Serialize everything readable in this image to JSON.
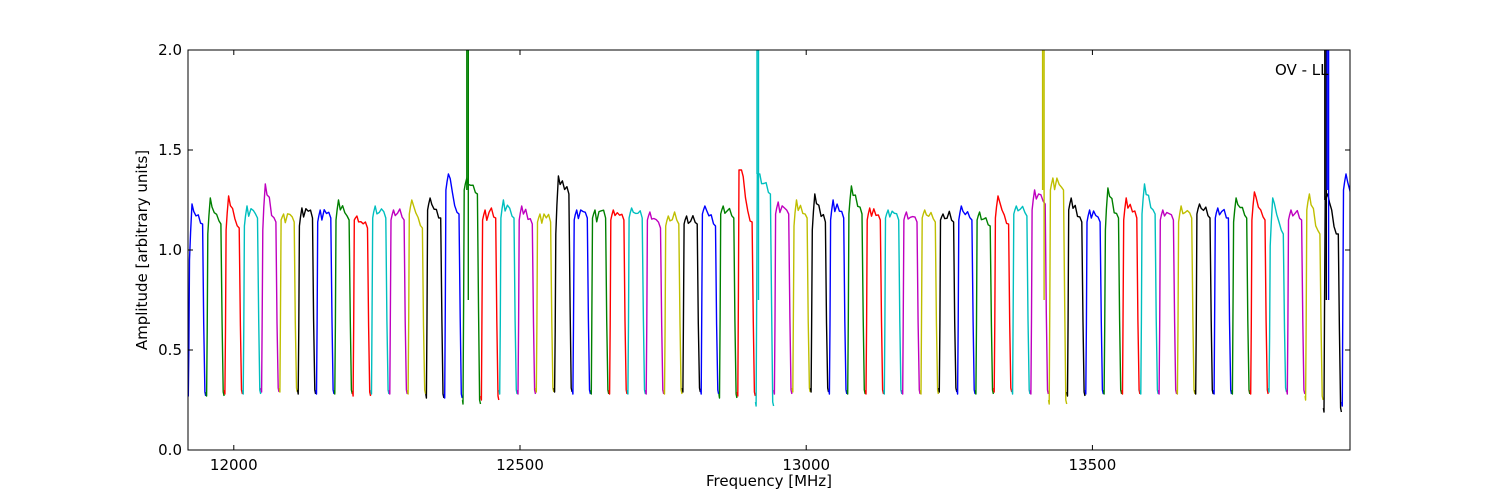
{
  "chart_data": {
    "type": "line",
    "title": "",
    "annotation": "OV - LL",
    "xlabel": "Frequency [MHz]",
    "ylabel": "Amplitude [arbitrary units]",
    "xlim": [
      11920,
      13950
    ],
    "ylim": [
      0.0,
      2.0
    ],
    "x_ticks": [
      12000,
      12500,
      13000,
      13500
    ],
    "x_tick_labels": [
      "12000",
      "12500",
      "13000",
      "13500"
    ],
    "y_ticks": [
      0.0,
      0.5,
      1.0,
      1.5,
      2.0
    ],
    "y_tick_labels": [
      "0.0",
      "0.5",
      "1.0",
      "1.5",
      "2.0"
    ],
    "grid": false,
    "legend": "none",
    "palette": [
      "#0000ff",
      "#008000",
      "#ff0000",
      "#00bfbf",
      "#bf00bf",
      "#bfbf00",
      "#000000"
    ],
    "channel_width_mhz": 32,
    "channels": [
      {
        "start": 11920,
        "edge_left": 0.95,
        "peak": 1.23,
        "edge_right": 1.15,
        "floor": 0.27,
        "color": "#0000ff"
      },
      {
        "start": 11952,
        "edge_left": 1.08,
        "peak": 1.26,
        "edge_right": 1.15,
        "floor": 0.27,
        "color": "#008000"
      },
      {
        "start": 11984,
        "edge_left": 1.1,
        "peak": 1.27,
        "edge_right": 1.13,
        "floor": 0.28,
        "color": "#ff0000"
      },
      {
        "start": 12016,
        "edge_left": 1.12,
        "peak": 1.22,
        "edge_right": 1.18,
        "floor": 0.28,
        "color": "#00bfbf"
      },
      {
        "start": 12048,
        "edge_left": 1.1,
        "peak": 1.33,
        "edge_right": 1.16,
        "floor": 0.29,
        "color": "#bf00bf"
      },
      {
        "start": 12080,
        "edge_left": 1.15,
        "peak": 1.18,
        "edge_right": 1.16,
        "floor": 0.29,
        "color": "#bfbf00"
      },
      {
        "start": 12112,
        "edge_left": 1.12,
        "peak": 1.21,
        "edge_right": 1.18,
        "floor": 0.28,
        "color": "#000000"
      },
      {
        "start": 12144,
        "edge_left": 1.14,
        "peak": 1.2,
        "edge_right": 1.18,
        "floor": 0.28,
        "color": "#0000ff"
      },
      {
        "start": 12176,
        "edge_left": 1.15,
        "peak": 1.25,
        "edge_right": 1.17,
        "floor": 0.28,
        "color": "#008000"
      },
      {
        "start": 12208,
        "edge_left": 1.15,
        "peak": 1.17,
        "edge_right": 1.13,
        "floor": 0.27,
        "color": "#ff0000"
      },
      {
        "start": 12240,
        "edge_left": 1.16,
        "peak": 1.22,
        "edge_right": 1.18,
        "floor": 0.28,
        "color": "#00bfbf"
      },
      {
        "start": 12272,
        "edge_left": 1.15,
        "peak": 1.2,
        "edge_right": 1.17,
        "floor": 0.28,
        "color": "#bf00bf"
      },
      {
        "start": 12304,
        "edge_left": 1.18,
        "peak": 1.25,
        "edge_right": 1.13,
        "floor": 0.28,
        "color": "#bfbf00"
      },
      {
        "start": 12336,
        "edge_left": 1.2,
        "peak": 1.26,
        "edge_right": 1.18,
        "floor": 0.26,
        "color": "#000000"
      },
      {
        "start": 12368,
        "edge_left": 1.3,
        "peak": 1.38,
        "edge_right": 1.2,
        "floor": 0.26,
        "color": "#0000ff"
      },
      {
        "start": 12400,
        "edge_left": 1.3,
        "peak": 1.36,
        "edge_right": 1.3,
        "floor": 0.23,
        "color": "#008000",
        "spike_x": 12407
      },
      {
        "start": 12432,
        "edge_left": 1.15,
        "peak": 1.2,
        "edge_right": 1.18,
        "floor": 0.25,
        "color": "#ff0000"
      },
      {
        "start": 12464,
        "edge_left": 1.16,
        "peak": 1.25,
        "edge_right": 1.18,
        "floor": 0.28,
        "color": "#00bfbf"
      },
      {
        "start": 12496,
        "edge_left": 1.15,
        "peak": 1.22,
        "edge_right": 1.15,
        "floor": 0.28,
        "color": "#bf00bf"
      },
      {
        "start": 12528,
        "edge_left": 1.14,
        "peak": 1.18,
        "edge_right": 1.16,
        "floor": 0.29,
        "color": "#bfbf00"
      },
      {
        "start": 12560,
        "edge_left": 1.08,
        "peak": 1.37,
        "edge_right": 1.3,
        "floor": 0.29,
        "color": "#000000"
      },
      {
        "start": 12592,
        "edge_left": 1.15,
        "peak": 1.2,
        "edge_right": 1.18,
        "floor": 0.28,
        "color": "#0000ff"
      },
      {
        "start": 12624,
        "edge_left": 1.16,
        "peak": 1.2,
        "edge_right": 1.18,
        "floor": 0.28,
        "color": "#008000"
      },
      {
        "start": 12656,
        "edge_left": 1.15,
        "peak": 1.2,
        "edge_right": 1.17,
        "floor": 0.28,
        "color": "#ff0000"
      },
      {
        "start": 12688,
        "edge_left": 1.16,
        "peak": 1.21,
        "edge_right": 1.18,
        "floor": 0.28,
        "color": "#00bfbf"
      },
      {
        "start": 12720,
        "edge_left": 1.15,
        "peak": 1.19,
        "edge_right": 1.13,
        "floor": 0.28,
        "color": "#bf00bf"
      },
      {
        "start": 12752,
        "edge_left": 1.12,
        "peak": 1.17,
        "edge_right": 1.15,
        "floor": 0.28,
        "color": "#bfbf00"
      },
      {
        "start": 12784,
        "edge_left": 1.13,
        "peak": 1.17,
        "edge_right": 1.15,
        "floor": 0.29,
        "color": "#000000"
      },
      {
        "start": 12816,
        "edge_left": 1.18,
        "peak": 1.22,
        "edge_right": 1.14,
        "floor": 0.28,
        "color": "#0000ff"
      },
      {
        "start": 12848,
        "edge_left": 1.18,
        "peak": 1.22,
        "edge_right": 1.18,
        "floor": 0.26,
        "color": "#008000"
      },
      {
        "start": 12880,
        "edge_left": 1.4,
        "peak": 1.4,
        "edge_right": 1.16,
        "floor": 0.27,
        "color": "#ff0000"
      },
      {
        "start": 12912,
        "edge_left": 1.38,
        "peak": 1.38,
        "edge_right": 1.3,
        "floor": 0.22,
        "color": "#00bfbf",
        "spike_x": 12914
      },
      {
        "start": 12944,
        "edge_left": 1.18,
        "peak": 1.24,
        "edge_right": 1.2,
        "floor": 0.28,
        "color": "#bf00bf"
      },
      {
        "start": 12976,
        "edge_left": 1.12,
        "peak": 1.25,
        "edge_right": 1.18,
        "floor": 0.29,
        "color": "#bfbf00"
      },
      {
        "start": 13008,
        "edge_left": 1.1,
        "peak": 1.28,
        "edge_right": 1.16,
        "floor": 0.29,
        "color": "#000000"
      },
      {
        "start": 13040,
        "edge_left": 1.15,
        "peak": 1.25,
        "edge_right": 1.18,
        "floor": 0.28,
        "color": "#0000ff"
      },
      {
        "start": 13072,
        "edge_left": 1.18,
        "peak": 1.32,
        "edge_right": 1.2,
        "floor": 0.28,
        "color": "#008000"
      },
      {
        "start": 13104,
        "edge_left": 1.15,
        "peak": 1.21,
        "edge_right": 1.17,
        "floor": 0.28,
        "color": "#ff0000"
      },
      {
        "start": 13136,
        "edge_left": 1.16,
        "peak": 1.2,
        "edge_right": 1.17,
        "floor": 0.28,
        "color": "#00bfbf"
      },
      {
        "start": 13168,
        "edge_left": 1.15,
        "peak": 1.19,
        "edge_right": 1.16,
        "floor": 0.28,
        "color": "#bf00bf"
      },
      {
        "start": 13200,
        "edge_left": 1.16,
        "peak": 1.2,
        "edge_right": 1.16,
        "floor": 0.28,
        "color": "#bfbf00"
      },
      {
        "start": 13232,
        "edge_left": 1.15,
        "peak": 1.18,
        "edge_right": 1.16,
        "floor": 0.29,
        "color": "#000000"
      },
      {
        "start": 13264,
        "edge_left": 1.15,
        "peak": 1.22,
        "edge_right": 1.17,
        "floor": 0.28,
        "color": "#0000ff"
      },
      {
        "start": 13296,
        "edge_left": 1.15,
        "peak": 1.19,
        "edge_right": 1.14,
        "floor": 0.28,
        "color": "#008000"
      },
      {
        "start": 13328,
        "edge_left": 1.16,
        "peak": 1.27,
        "edge_right": 1.15,
        "floor": 0.29,
        "color": "#ff0000"
      },
      {
        "start": 13360,
        "edge_left": 1.18,
        "peak": 1.22,
        "edge_right": 1.19,
        "floor": 0.28,
        "color": "#00bfbf"
      },
      {
        "start": 13392,
        "edge_left": 1.2,
        "peak": 1.3,
        "edge_right": 1.25,
        "floor": 0.28,
        "color": "#bf00bf"
      },
      {
        "start": 13424,
        "edge_left": 1.3,
        "peak": 1.36,
        "edge_right": 1.32,
        "floor": 0.23,
        "color": "#bfbf00",
        "spike_x": 13413
      },
      {
        "start": 13456,
        "edge_left": 1.2,
        "peak": 1.26,
        "edge_right": 1.16,
        "floor": 0.27,
        "color": "#000000"
      },
      {
        "start": 13488,
        "edge_left": 1.14,
        "peak": 1.2,
        "edge_right": 1.16,
        "floor": 0.28,
        "color": "#0000ff"
      },
      {
        "start": 13520,
        "edge_left": 1.1,
        "peak": 1.31,
        "edge_right": 1.18,
        "floor": 0.28,
        "color": "#008000"
      },
      {
        "start": 13552,
        "edge_left": 1.15,
        "peak": 1.26,
        "edge_right": 1.18,
        "floor": 0.28,
        "color": "#ff0000"
      },
      {
        "start": 13584,
        "edge_left": 1.18,
        "peak": 1.33,
        "edge_right": 1.2,
        "floor": 0.28,
        "color": "#00bfbf"
      },
      {
        "start": 13616,
        "edge_left": 1.15,
        "peak": 1.2,
        "edge_right": 1.17,
        "floor": 0.28,
        "color": "#bf00bf"
      },
      {
        "start": 13648,
        "edge_left": 1.14,
        "peak": 1.22,
        "edge_right": 1.18,
        "floor": 0.28,
        "color": "#bfbf00"
      },
      {
        "start": 13680,
        "edge_left": 1.18,
        "peak": 1.23,
        "edge_right": 1.18,
        "floor": 0.28,
        "color": "#000000"
      },
      {
        "start": 13712,
        "edge_left": 1.16,
        "peak": 1.21,
        "edge_right": 1.18,
        "floor": 0.28,
        "color": "#0000ff"
      },
      {
        "start": 13744,
        "edge_left": 1.14,
        "peak": 1.26,
        "edge_right": 1.18,
        "floor": 0.28,
        "color": "#008000"
      },
      {
        "start": 13776,
        "edge_left": 1.15,
        "peak": 1.29,
        "edge_right": 1.17,
        "floor": 0.28,
        "color": "#ff0000"
      },
      {
        "start": 13808,
        "edge_left": 1.02,
        "peak": 1.26,
        "edge_right": 1.1,
        "floor": 0.29,
        "color": "#00bfbf"
      },
      {
        "start": 13840,
        "edge_left": 1.15,
        "peak": 1.2,
        "edge_right": 1.17,
        "floor": 0.28,
        "color": "#bf00bf"
      },
      {
        "start": 13872,
        "edge_left": 1.2,
        "peak": 1.28,
        "edge_right": 1.1,
        "floor": 0.25,
        "color": "#bfbf00"
      },
      {
        "start": 13904,
        "edge_left": 1.25,
        "peak": 1.28,
        "edge_right": 1.1,
        "floor": 0.19,
        "color": "#000000",
        "spike_x": 13906
      },
      {
        "start": 13936,
        "edge_left": 1.3,
        "peak": 1.38,
        "edge_right": 1.2,
        "floor": 0.22,
        "color": "#0000ff",
        "spike_x": 13910
      }
    ]
  }
}
